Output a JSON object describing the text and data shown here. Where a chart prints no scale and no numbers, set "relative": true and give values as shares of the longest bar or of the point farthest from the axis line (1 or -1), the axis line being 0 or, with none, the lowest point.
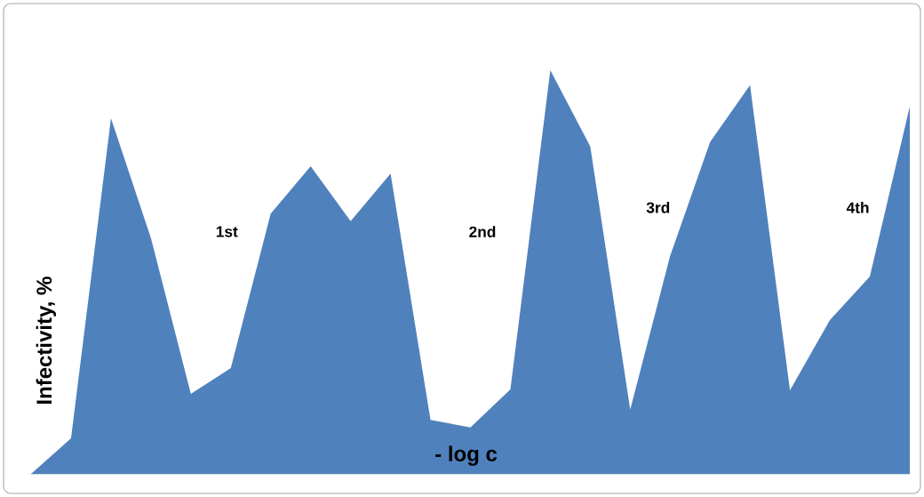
{
  "chart_data": {
    "type": "area",
    "relative": true,
    "xlabel": "- log c",
    "ylabel": "Infectivity, %",
    "color": "#4f81bd",
    "categories": [
      null,
      null,
      null,
      null,
      null,
      null,
      null,
      null,
      null,
      null,
      null,
      null,
      null,
      null,
      null,
      null,
      null,
      null,
      null,
      null,
      null,
      null,
      null
    ],
    "values": [
      0,
      0.088,
      0.881,
      0.584,
      0.198,
      0.262,
      0.645,
      0.762,
      0.626,
      0.744,
      0.134,
      0.115,
      0.209,
      1,
      0.811,
      0.159,
      0.54,
      0.822,
      0.963,
      0.207,
      0.381,
      0.489,
      0.91
    ],
    "annotations": [
      "1st",
      "2nd",
      "3rd",
      "4th"
    ]
  }
}
